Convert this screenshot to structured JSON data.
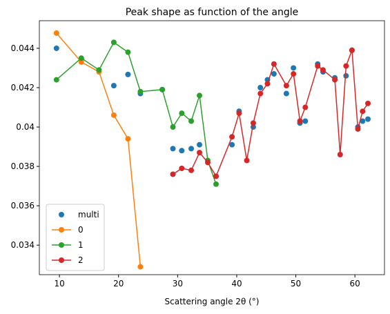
{
  "chart_data": {
    "type": "line",
    "title": "Peak shape as function of the angle",
    "x_label": "Scattering angle 2θ (°)",
    "xlim": [
      6.6,
      65.0
    ],
    "xticks": [
      10,
      20,
      30,
      40,
      50,
      60
    ],
    "ylim": [
      0.0325,
      0.0454
    ],
    "yticks": [
      0.034,
      0.036,
      0.038,
      0.04,
      0.042,
      0.044
    ],
    "legend": "lower left",
    "grid": false,
    "series": [
      {
        "name": "multi",
        "color": "#1f77b4",
        "markers_only": true,
        "x": [
          9.5,
          13.7,
          19.2,
          21.6,
          23.7,
          27.4,
          29.2,
          30.7,
          32.3,
          33.7,
          36.5,
          39.2,
          40.4,
          42.8,
          44.0,
          45.2,
          46.3,
          48.4,
          49.6,
          50.7,
          51.6,
          53.7,
          54.6,
          56.6,
          58.5,
          59.5,
          60.5,
          61.3,
          62.2
        ],
        "values": [
          0.044,
          0.04346,
          0.0421,
          0.04267,
          0.0417,
          0.0419,
          0.0389,
          0.0388,
          0.0389,
          0.0391,
          0.0375,
          0.0391,
          0.0408,
          0.04,
          0.042,
          0.0424,
          0.0427,
          0.0417,
          0.043,
          0.0402,
          0.0403,
          0.0432,
          0.0428,
          0.0425,
          0.0426,
          0.0439,
          0.04,
          0.0403,
          0.0404
        ]
      },
      {
        "name": "0",
        "color": "#ff7f0e",
        "markers_only": false,
        "x": [
          9.5,
          13.7,
          16.7,
          19.2,
          21.6,
          23.7
        ],
        "values": [
          0.04477,
          0.0433,
          0.0428,
          0.0406,
          0.0394,
          0.0329
        ]
      },
      {
        "name": "1",
        "color": "#2ca02c",
        "markers_only": false,
        "x": [
          9.5,
          13.7,
          16.7,
          19.2,
          21.6,
          23.7,
          27.4,
          29.2,
          30.7,
          32.3,
          33.7,
          35.1,
          36.5
        ],
        "values": [
          0.0424,
          0.0435,
          0.0429,
          0.0443,
          0.0438,
          0.0418,
          0.0419,
          0.04,
          0.0407,
          0.0403,
          0.0416,
          0.0383,
          0.0371
        ]
      },
      {
        "name": "2",
        "color": "#d62728",
        "markers_only": false,
        "x": [
          29.2,
          30.7,
          32.3,
          33.7,
          35.1,
          36.5,
          39.2,
          40.4,
          41.7,
          42.8,
          44.0,
          45.2,
          46.3,
          48.4,
          49.6,
          50.7,
          51.6,
          53.7,
          54.6,
          56.6,
          57.5,
          58.5,
          59.5,
          60.5,
          61.3,
          62.2
        ],
        "values": [
          0.0376,
          0.0379,
          0.0378,
          0.0387,
          0.0382,
          0.0375,
          0.0395,
          0.0407,
          0.0383,
          0.0402,
          0.0417,
          0.0422,
          0.0432,
          0.0421,
          0.0427,
          0.0403,
          0.041,
          0.0431,
          0.0429,
          0.0424,
          0.0386,
          0.0431,
          0.0439,
          0.0399,
          0.0408,
          0.0412
        ]
      }
    ]
  }
}
